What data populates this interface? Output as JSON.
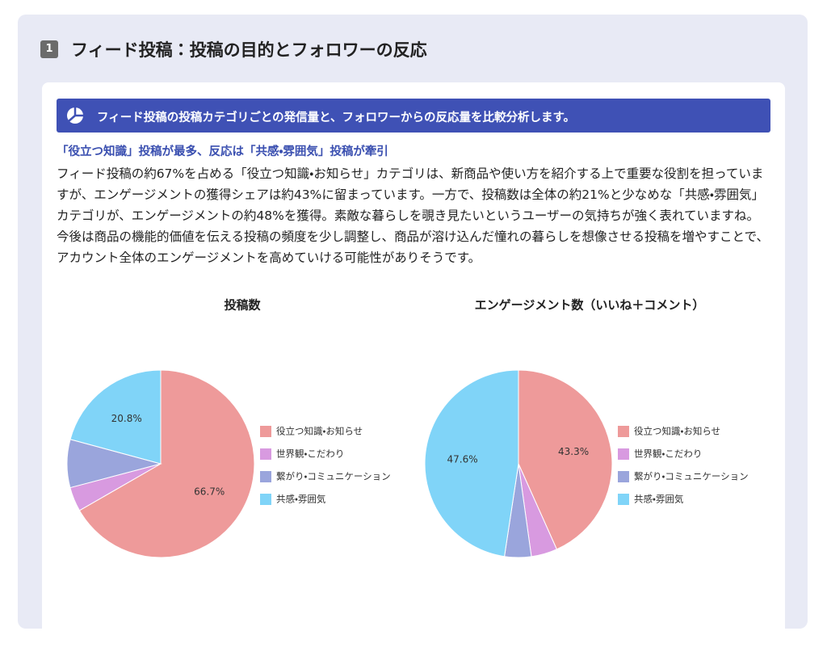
{
  "header": {
    "number": "1",
    "title": "フィード投稿：投稿の目的とフォロワーの反応"
  },
  "banner": "フィード投稿の投稿カテゴリごとの発信量と、フォロワーからの反応量を比較分析します。",
  "subheading": "「役立つ知識」投稿が最多、反応は「共感・雰囲気」投稿が牽引",
  "paragraph": "フィード投稿の約67%を占める「役立つ知識・お知らせ」カテゴリは、新商品や使い方を紹介する上で重要な役割を担っていますが、エンゲージメントの獲得シェアは約43%に留まっています。一方で、投稿数は全体の約21%と少なめな「共感・雰囲気」カテゴリが、エンゲージメントの約48%を獲得。素敵な暮らしを覗き見たいというユーザーの気持ちが強く表れていますね。今後は商品の機能的価値を伝える投稿の頻度を少し調整し、商品が溶け込んだ憧れの暮らしを想像させる投稿を増やすことで、アカウント全体のエンゲージメントを高めていける可能性がありそうです。",
  "chart_data": [
    {
      "type": "pie",
      "title": "投稿数",
      "categories": [
        "役立つ知識・お知らせ",
        "世界観・こだわり",
        "繋がり・コミュニケーション",
        "共感・雰囲気"
      ],
      "values": [
        66.7,
        4.2,
        8.3,
        20.8
      ],
      "value_labels": [
        "66.7%",
        null,
        null,
        "20.8%"
      ],
      "colors": [
        "#ee9a9a",
        "#d89ae0",
        "#9aa5dc",
        "#80d4f8"
      ]
    },
    {
      "type": "pie",
      "title": "エンゲージメント数（いいね＋コメント）",
      "categories": [
        "役立つ知識・お知らせ",
        "世界観・こだわり",
        "繋がり・コミュニケーション",
        "共感・雰囲気"
      ],
      "values": [
        43.3,
        4.5,
        4.6,
        47.6
      ],
      "value_labels": [
        "43.3%",
        null,
        null,
        "47.6%"
      ],
      "colors": [
        "#ee9a9a",
        "#d89ae0",
        "#9aa5dc",
        "#80d4f8"
      ]
    }
  ]
}
